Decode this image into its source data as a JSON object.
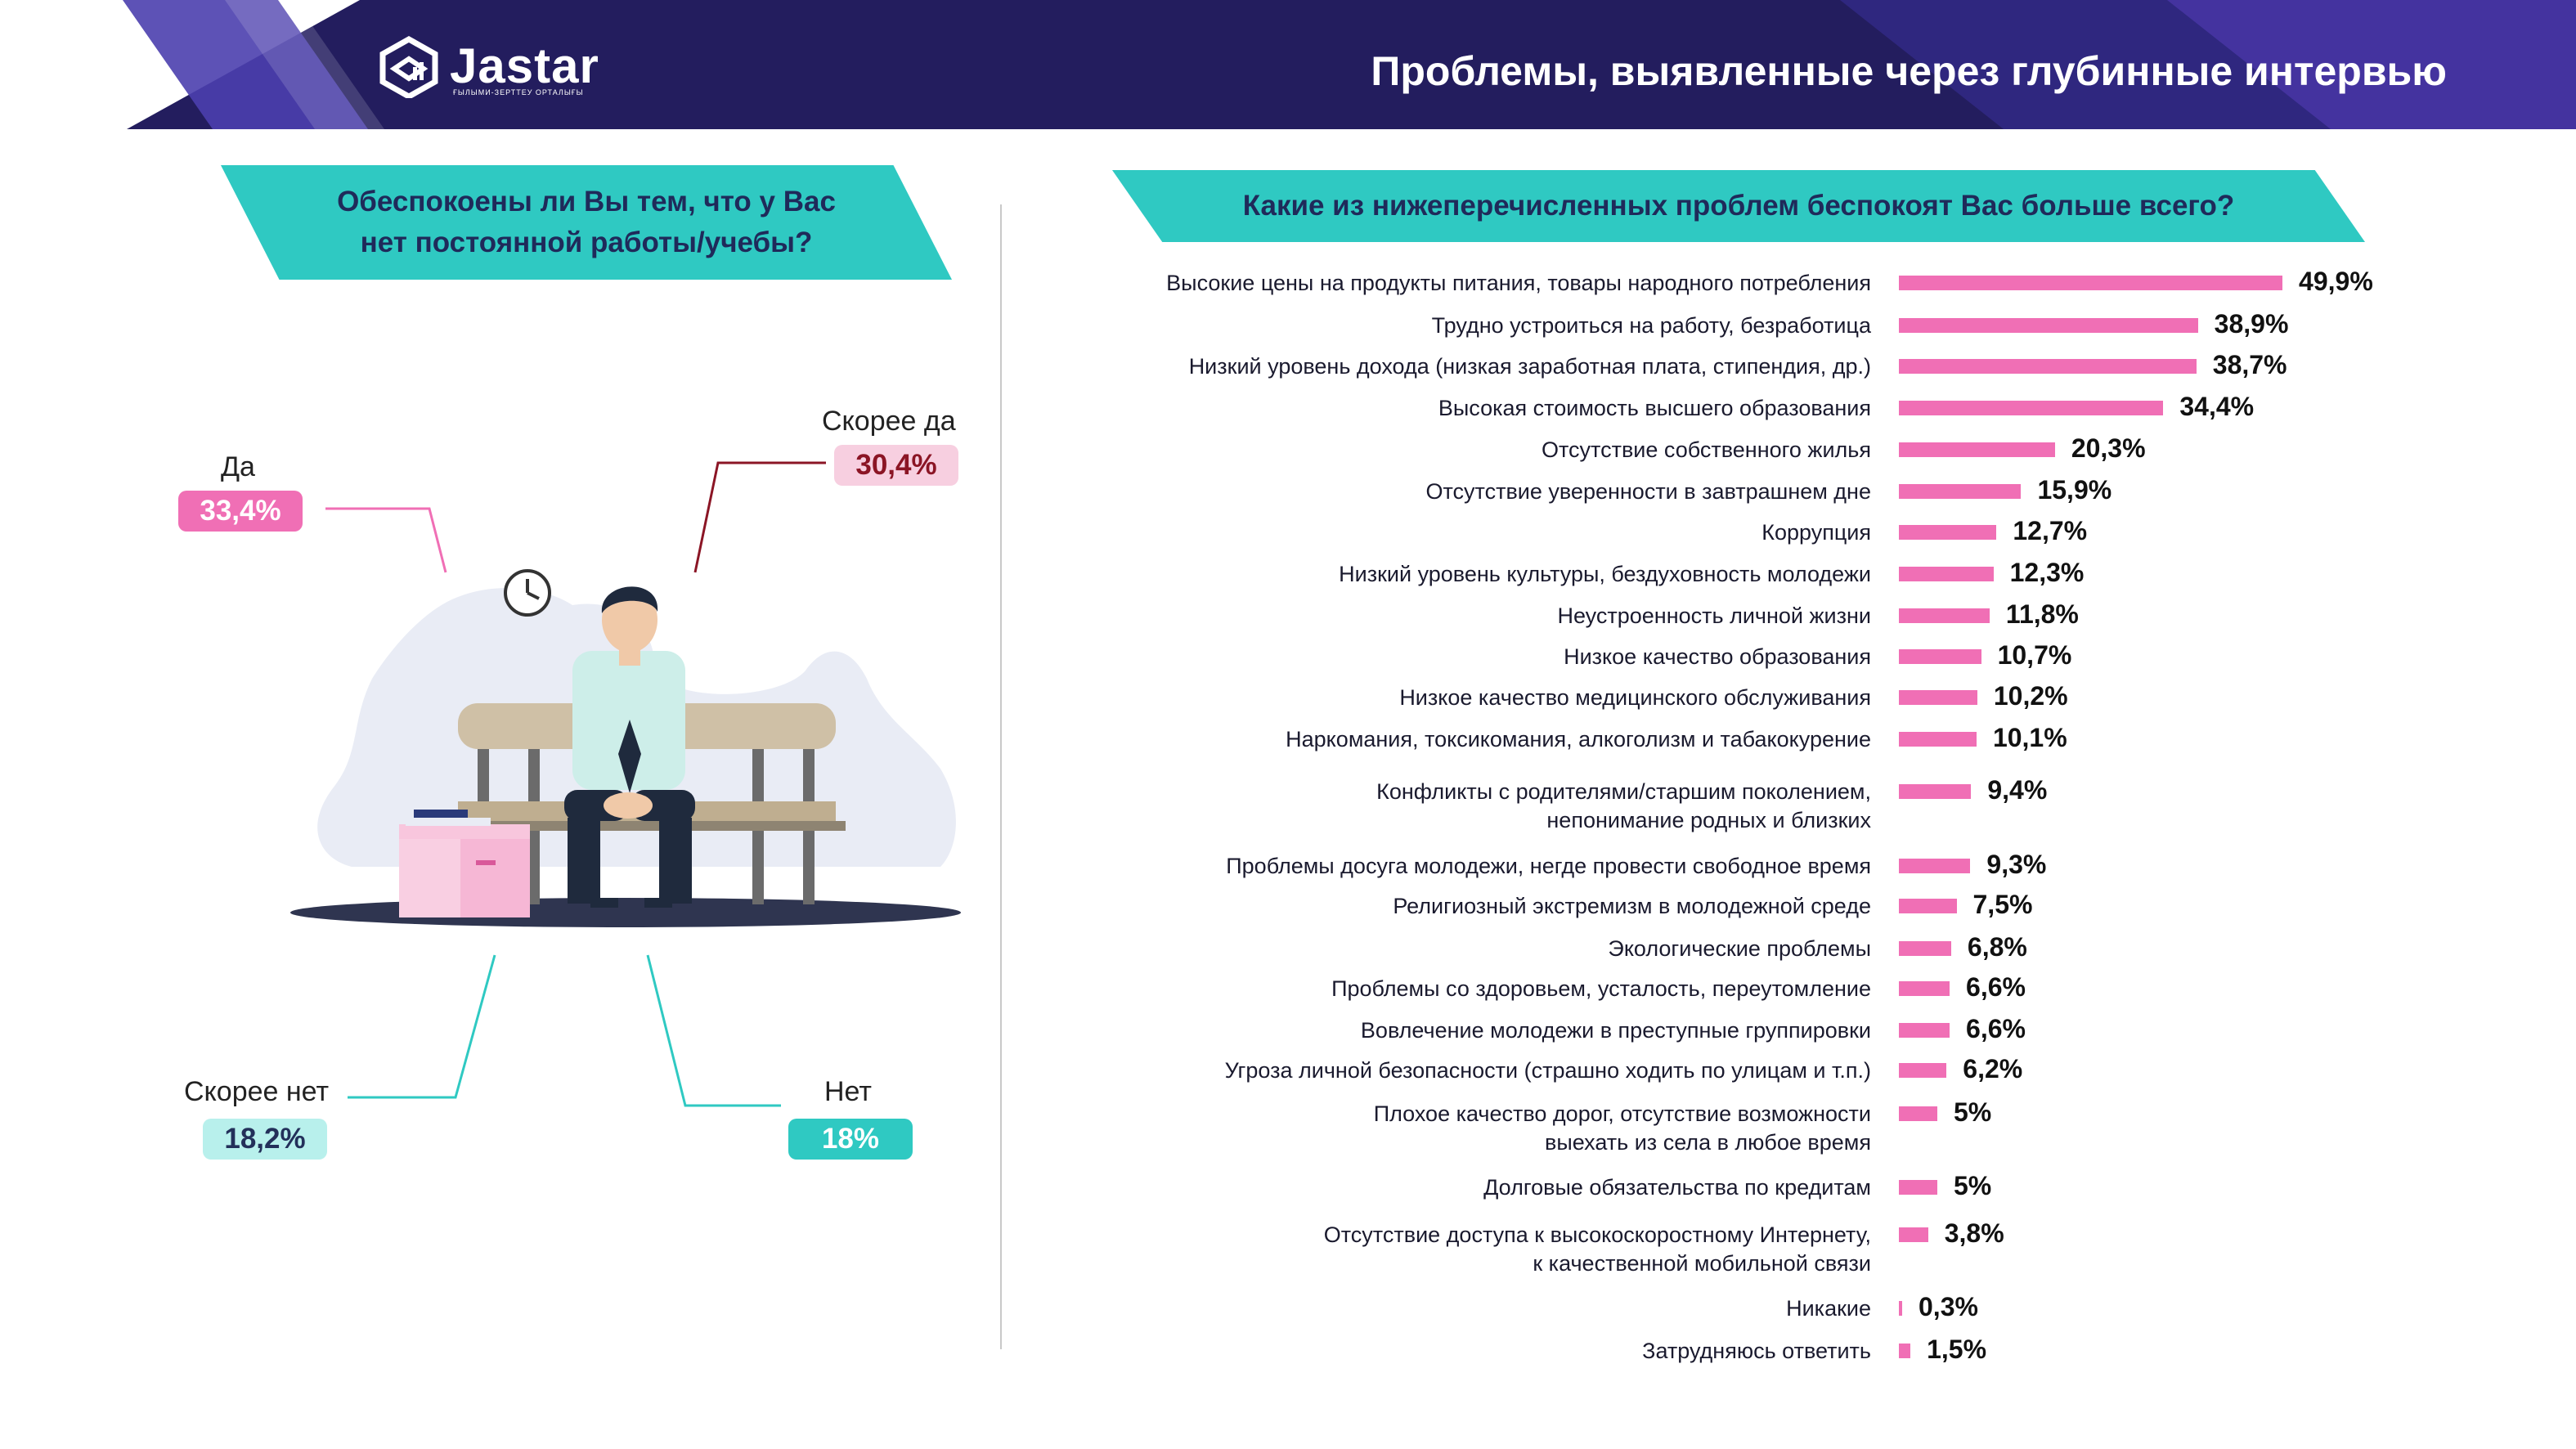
{
  "header": {
    "logo_text": "Jastar",
    "logo_subtext": "ҒЫЛЫМИ-ЗЕРТТЕУ ОРТАЛЫҒЫ",
    "title": "Проблемы, выявленные через глубинные интервью"
  },
  "left_panel": {
    "question": "Обеспокоены ли Вы тем, что у Вас нет постоянной работы/учебы?",
    "answers": {
      "da": {
        "label": "Да",
        "value": "33,4%"
      },
      "skoree_da": {
        "label": "Скорее да",
        "value": "30,4%"
      },
      "skoree_net": {
        "label": "Скорее нет",
        "value": "18,2%"
      },
      "net": {
        "label": "Нет",
        "value": "18%"
      }
    }
  },
  "chart_data": {
    "type": "bar",
    "title": "Какие из нижеперечисленных проблем беспокоят Вас больше всего?",
    "unit": "%",
    "categories": [
      "Высокие цены на продукты питания, товары народного потребления",
      "Трудно устроиться на работу, безработица",
      "Низкий уровень дохода (низкая заработная плата, стипендия, др.)",
      "Высокая стоимость высшего образования",
      "Отсутствие собственного жилья",
      "Отсутствие уверенности в завтрашнем дне",
      "Коррупция",
      "Низкий уровень культуры, бездуховность молодежи",
      "Неустроенность личной жизни",
      "Низкое качество образования",
      "Низкое качество медицинского обслуживания",
      "Наркомания, токсикомания, алкоголизм и табакокурение",
      "Конфликты с родителями/старшим поколением,\nнепонимание родных и близких",
      "Проблемы досуга молодежи, негде провести свободное время",
      "Религиозный экстремизм в молодежной среде",
      "Экологические проблемы",
      "Проблемы со здоровьем, усталость, переутомление",
      "Вовлечение молодежи в преступные группировки",
      "Угроза личной безопасности (страшно ходить по улицам и т.п.)",
      "Плохое качество дорог, отсутствие возможности\nвыехать из села в любое время",
      "Долговые обязательства по кредитам",
      "Отсутствие доступа к высокоскоростному Интернету,\nк качественной мобильной связи",
      "Никакие",
      "Затрудняюсь ответить"
    ],
    "values": [
      49.9,
      38.9,
      38.7,
      34.4,
      20.3,
      15.9,
      12.7,
      12.3,
      11.8,
      10.7,
      10.2,
      10.1,
      9.4,
      9.3,
      7.5,
      6.8,
      6.6,
      6.6,
      6.2,
      5,
      5,
      3.8,
      0.3,
      1.5
    ],
    "value_labels": [
      "49,9%",
      "38,9%",
      "38,7%",
      "34,4%",
      "20,3%",
      "15,9%",
      "12,7%",
      "12,3%",
      "11,8%",
      "10,7%",
      "10,2%",
      "10,1%",
      "9,4%",
      "9,3%",
      "7,5%",
      "6,8%",
      "6,6%",
      "6,6%",
      "6,2%",
      "5%",
      "5%",
      "3,8%",
      "0,3%",
      "1,5%"
    ],
    "bar_color": "#f06fb5"
  },
  "colors": {
    "header_bg": "#231d5e",
    "banner": "#2fc9c2",
    "pink": "#f06fb5",
    "pink_light": "#f7cfe0",
    "dark_red": "#8b1525",
    "teal": "#2fc9c2",
    "teal_light": "#b8f0ec"
  }
}
